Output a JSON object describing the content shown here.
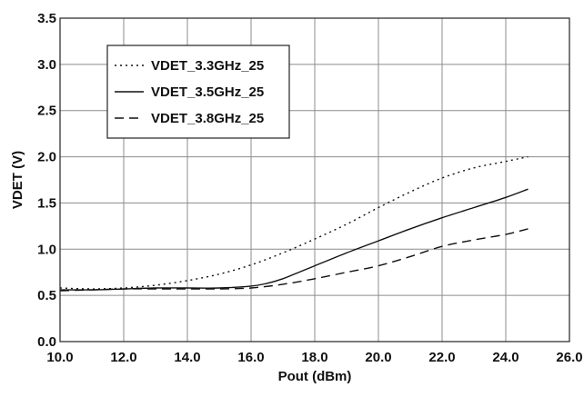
{
  "chart_data": {
    "type": "line",
    "title": "",
    "xlabel": "Pout (dBm)",
    "ylabel": "VDET (V)",
    "xlim": [
      10.0,
      26.0
    ],
    "ylim": [
      0.0,
      3.5
    ],
    "xticks": [
      10.0,
      12.0,
      14.0,
      16.0,
      18.0,
      20.0,
      22.0,
      24.0,
      26.0
    ],
    "yticks": [
      0.0,
      0.5,
      1.0,
      1.5,
      2.0,
      2.5,
      3.0,
      3.5
    ],
    "xtick_labels": [
      "10.0",
      "12.0",
      "14.0",
      "16.0",
      "18.0",
      "20.0",
      "22.0",
      "24.0",
      "26.0"
    ],
    "ytick_labels": [
      "0.0",
      "0.5",
      "1.0",
      "1.5",
      "2.0",
      "2.5",
      "3.0",
      "3.5"
    ],
    "grid": true,
    "legend_position": "top-left",
    "series": [
      {
        "name": "VDET_3.3GHz_25",
        "style": "dotted",
        "color": "#111111",
        "x": [
          10.0,
          11.0,
          12.0,
          13.0,
          14.0,
          15.0,
          16.0,
          17.0,
          18.0,
          19.0,
          20.0,
          21.0,
          22.0,
          23.0,
          24.0,
          24.7
        ],
        "y": [
          0.58,
          0.57,
          0.58,
          0.61,
          0.66,
          0.73,
          0.83,
          0.96,
          1.11,
          1.27,
          1.45,
          1.62,
          1.77,
          1.88,
          1.95,
          2.0
        ]
      },
      {
        "name": "VDET_3.5GHz_25",
        "style": "solid",
        "color": "#111111",
        "x": [
          10.0,
          11.0,
          12.0,
          13.0,
          14.0,
          15.0,
          16.0,
          16.5,
          17.0,
          17.5,
          18.0,
          19.0,
          20.0,
          21.0,
          22.0,
          23.0,
          24.0,
          24.7
        ],
        "y": [
          0.56,
          0.56,
          0.57,
          0.58,
          0.58,
          0.58,
          0.6,
          0.63,
          0.68,
          0.75,
          0.82,
          0.96,
          1.09,
          1.22,
          1.34,
          1.45,
          1.56,
          1.65
        ]
      },
      {
        "name": "VDET_3.8GHz_25",
        "style": "dashed",
        "color": "#111111",
        "x": [
          10.0,
          11.0,
          12.0,
          13.0,
          14.0,
          15.0,
          16.0,
          17.0,
          18.0,
          19.0,
          20.0,
          21.0,
          22.0,
          23.0,
          24.0,
          24.7
        ],
        "y": [
          0.55,
          0.56,
          0.57,
          0.57,
          0.57,
          0.57,
          0.58,
          0.62,
          0.68,
          0.75,
          0.82,
          0.92,
          1.03,
          1.1,
          1.16,
          1.22
        ]
      }
    ]
  }
}
